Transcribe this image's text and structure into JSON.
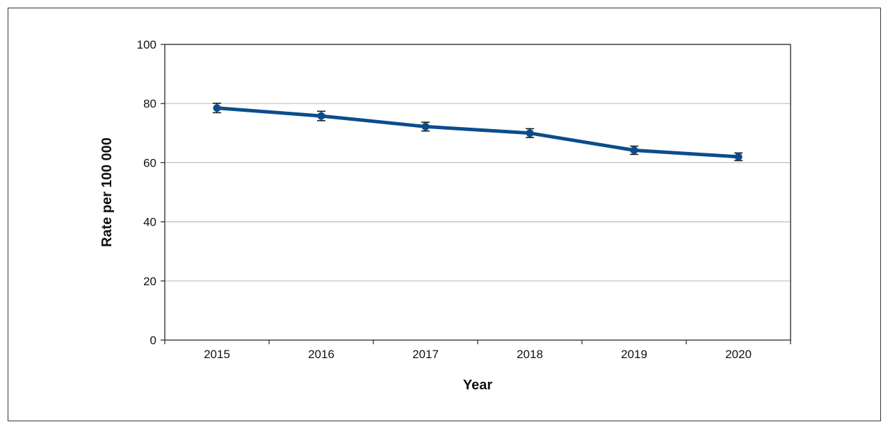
{
  "chart_data": {
    "type": "line",
    "title": "",
    "xlabel": "Year",
    "ylabel": "Rate per 100 000",
    "categories": [
      "2015",
      "2016",
      "2017",
      "2018",
      "2019",
      "2020"
    ],
    "series": [
      {
        "values": [
          78.5,
          75.8,
          72.2,
          70.0,
          64.2,
          62.0
        ],
        "error_low": [
          76.9,
          74.2,
          70.7,
          68.5,
          62.8,
          60.7
        ],
        "error_high": [
          80.1,
          77.4,
          73.7,
          71.5,
          65.6,
          63.3
        ]
      }
    ],
    "ylim": [
      0,
      100
    ],
    "yticks": [
      0,
      20,
      40,
      60,
      80,
      100
    ],
    "grid": true,
    "legend": "none",
    "colors": {
      "line": "#0b4d8c",
      "marker": "#0b4d8c",
      "grid": "#bdbdbd",
      "axis": "#222222",
      "error": "#111111"
    }
  }
}
